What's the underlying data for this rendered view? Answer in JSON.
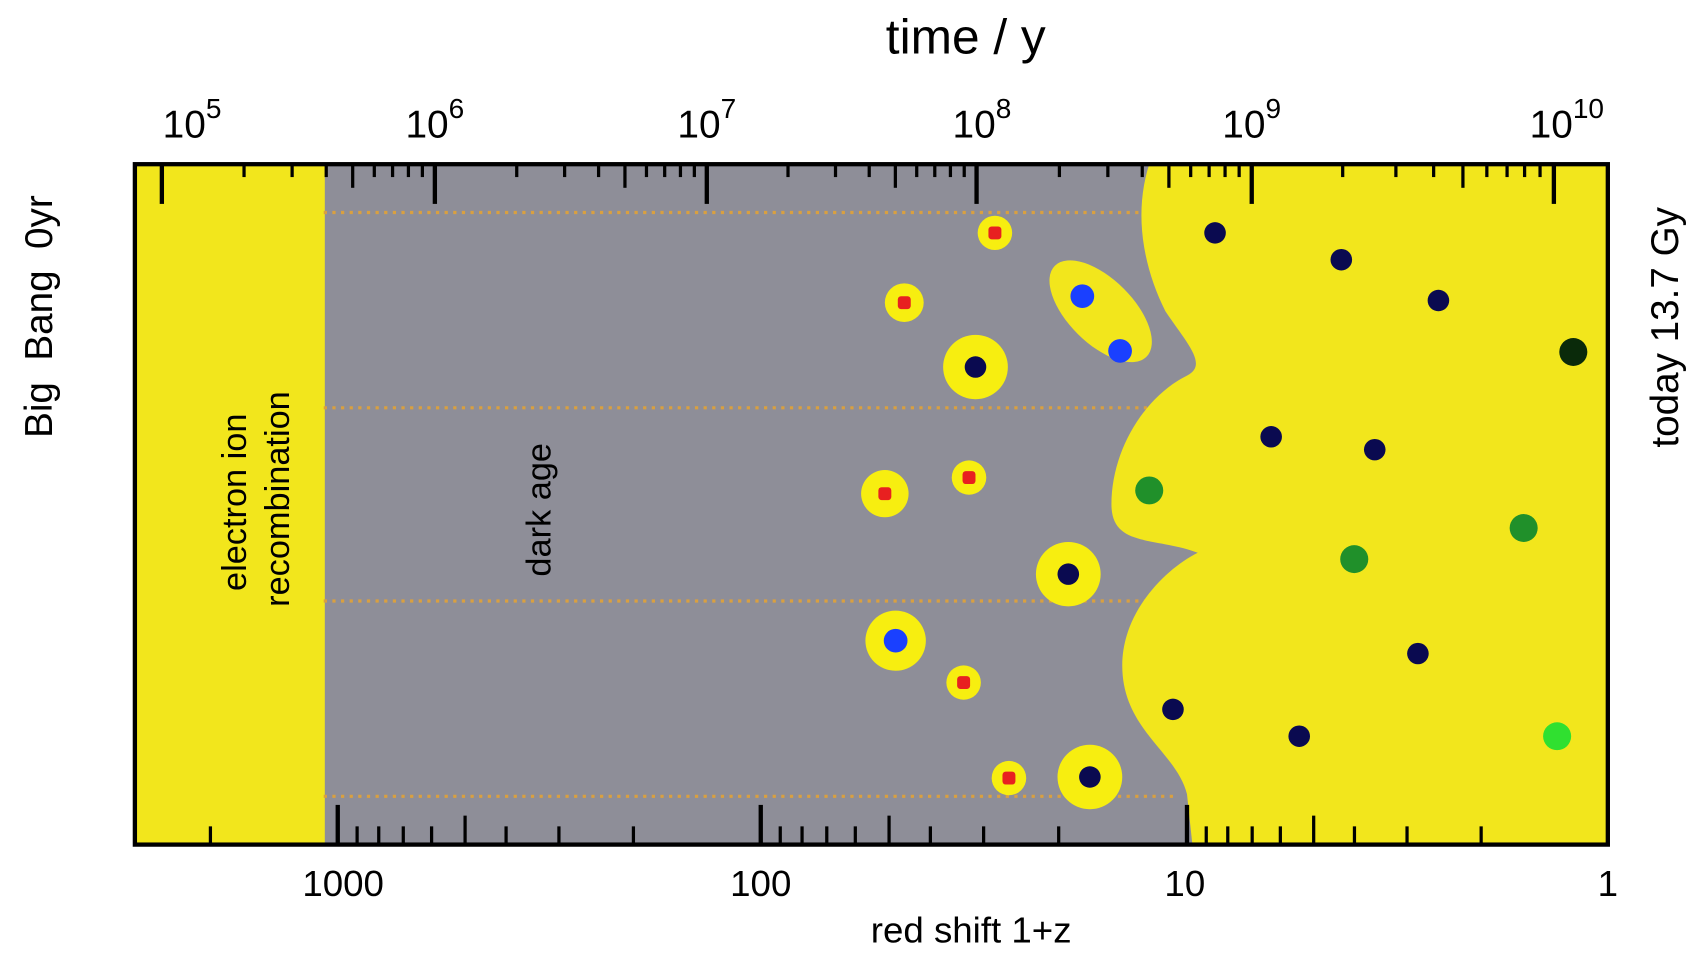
{
  "top_axis": {
    "title": "time / y",
    "ticks": [
      {
        "base": "10",
        "exponent": "5"
      },
      {
        "base": "10",
        "exponent": "6"
      },
      {
        "base": "10",
        "exponent": "7"
      },
      {
        "base": "10",
        "exponent": "8"
      },
      {
        "base": "10",
        "exponent": "9"
      },
      {
        "base": "10",
        "exponent": "10"
      }
    ]
  },
  "bottom_axis": {
    "title": "red shift 1+z",
    "ticks": [
      "1000",
      "100",
      "10",
      "1"
    ]
  },
  "left_label": "Big  Bang  0yr",
  "right_label": "today 13.7 Gy",
  "regions": {
    "recombination": [
      "electron ion",
      "recombination"
    ],
    "dark_age": "dark age"
  }
}
